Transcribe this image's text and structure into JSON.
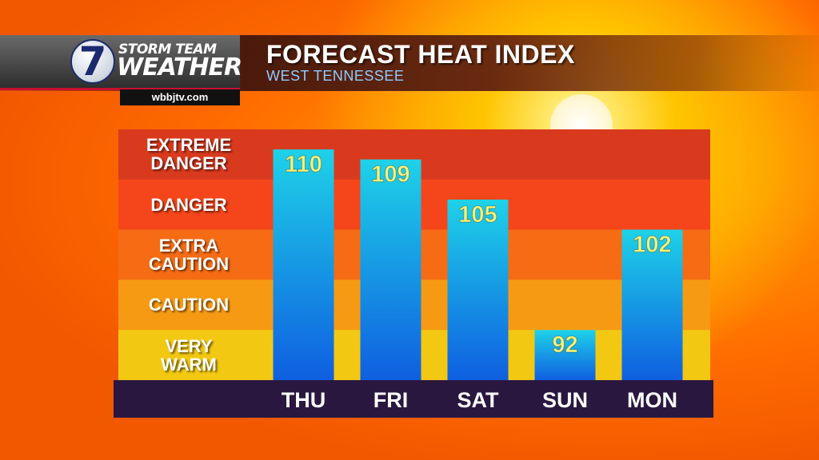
{
  "header": {
    "logo_line1": "STORM TEAM",
    "logo_line2": "WEATHER",
    "logo_number": "7",
    "website": "wbbjtv.com",
    "title": "FORECAST HEAT INDEX",
    "subtitle": "WEST TENNESSEE"
  },
  "zones": [
    {
      "label": "EXTREME\nDANGER",
      "color": "#d93a1e"
    },
    {
      "label": "DANGER",
      "color": "#f4461a"
    },
    {
      "label": "EXTRA\nCAUTION",
      "color": "#f56c14"
    },
    {
      "label": "CAUTION",
      "color": "#f79a13"
    },
    {
      "label": "VERY\nWARM",
      "color": "#f2c813"
    }
  ],
  "colors": {
    "bar_top": "#1ed2e8",
    "bar_bottom": "#0f5fe0",
    "value_text": "#f5f27a",
    "axis_band": "#2a1740",
    "axis_text": "#ffffff"
  },
  "chart_data": {
    "type": "bar",
    "title": "FORECAST HEAT INDEX",
    "subtitle": "WEST TENNESSEE",
    "categories": [
      "THU",
      "FRI",
      "SAT",
      "SUN",
      "MON"
    ],
    "values": [
      110,
      109,
      105,
      92,
      102
    ],
    "xlabel": "",
    "ylabel": "",
    "ylim": [
      87,
      112
    ],
    "grid": false,
    "data_labels": true
  }
}
